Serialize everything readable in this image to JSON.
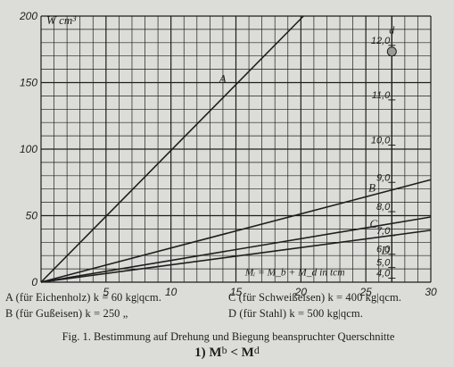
{
  "chart_data": {
    "type": "line",
    "ylabel": "W cm³",
    "d_label": "d",
    "annotation": "Mᵢ = M_b + M_d  in tcm",
    "xlim": [
      0,
      30
    ],
    "ylim": [
      0,
      200
    ],
    "x_ticks": [
      5,
      10,
      15,
      20,
      25,
      30
    ],
    "x_tick_labels": [
      "5",
      "10",
      "15",
      "20",
      "25",
      "30"
    ],
    "y_ticks": [
      0,
      50,
      100,
      150,
      200
    ],
    "y_tick_labels": [
      "0",
      "50",
      "100",
      "150",
      "200"
    ],
    "d_ticks": [
      {
        "label": "12,0",
        "w": 178
      },
      {
        "label": "11,0",
        "w": 137
      },
      {
        "label": "10,0",
        "w": 103
      },
      {
        "label": "9,0",
        "w": 75
      },
      {
        "label": "8,0",
        "w": 53
      },
      {
        "label": "7,0",
        "w": 35
      },
      {
        "label": "6,0",
        "w": 21
      },
      {
        "label": "5,0",
        "w": 11
      },
      {
        "label": "4,0",
        "w": 3
      }
    ],
    "series": [
      {
        "name": "A",
        "x": [
          0,
          20.2
        ],
        "y": [
          0,
          200
        ],
        "label_x": 13.7,
        "label_y": 150
      },
      {
        "name": "B",
        "x": [
          0,
          30
        ],
        "y": [
          0,
          77
        ],
        "label_x": 25.2,
        "label_y": 68
      },
      {
        "name": "C",
        "x": [
          0,
          30
        ],
        "y": [
          0,
          49
        ],
        "label_x": 25.3,
        "label_y": 41
      },
      {
        "name": "D",
        "x": [
          0,
          30
        ],
        "y": [
          0,
          39
        ],
        "label_x": 26.2,
        "label_y": 21
      }
    ],
    "grid": true
  },
  "legend": {
    "a": "A (für Eichenholz) k = 60 kg|qcm.",
    "b": "B (für Gußeisen) k = 250 „",
    "c": "C (für Schweißeisen) k = 400 kg|qcm.",
    "d": "D (für Stahl) k = 500 kg|qcm."
  },
  "caption": "Fig. 1. Bestimmung auf Drehung und Biegung beanspruchter Querschnitte",
  "formula": {
    "prefix": "1)",
    "left": "M",
    "left_sub": "b",
    "op": "<",
    "right": "M",
    "right_sub": "d"
  }
}
